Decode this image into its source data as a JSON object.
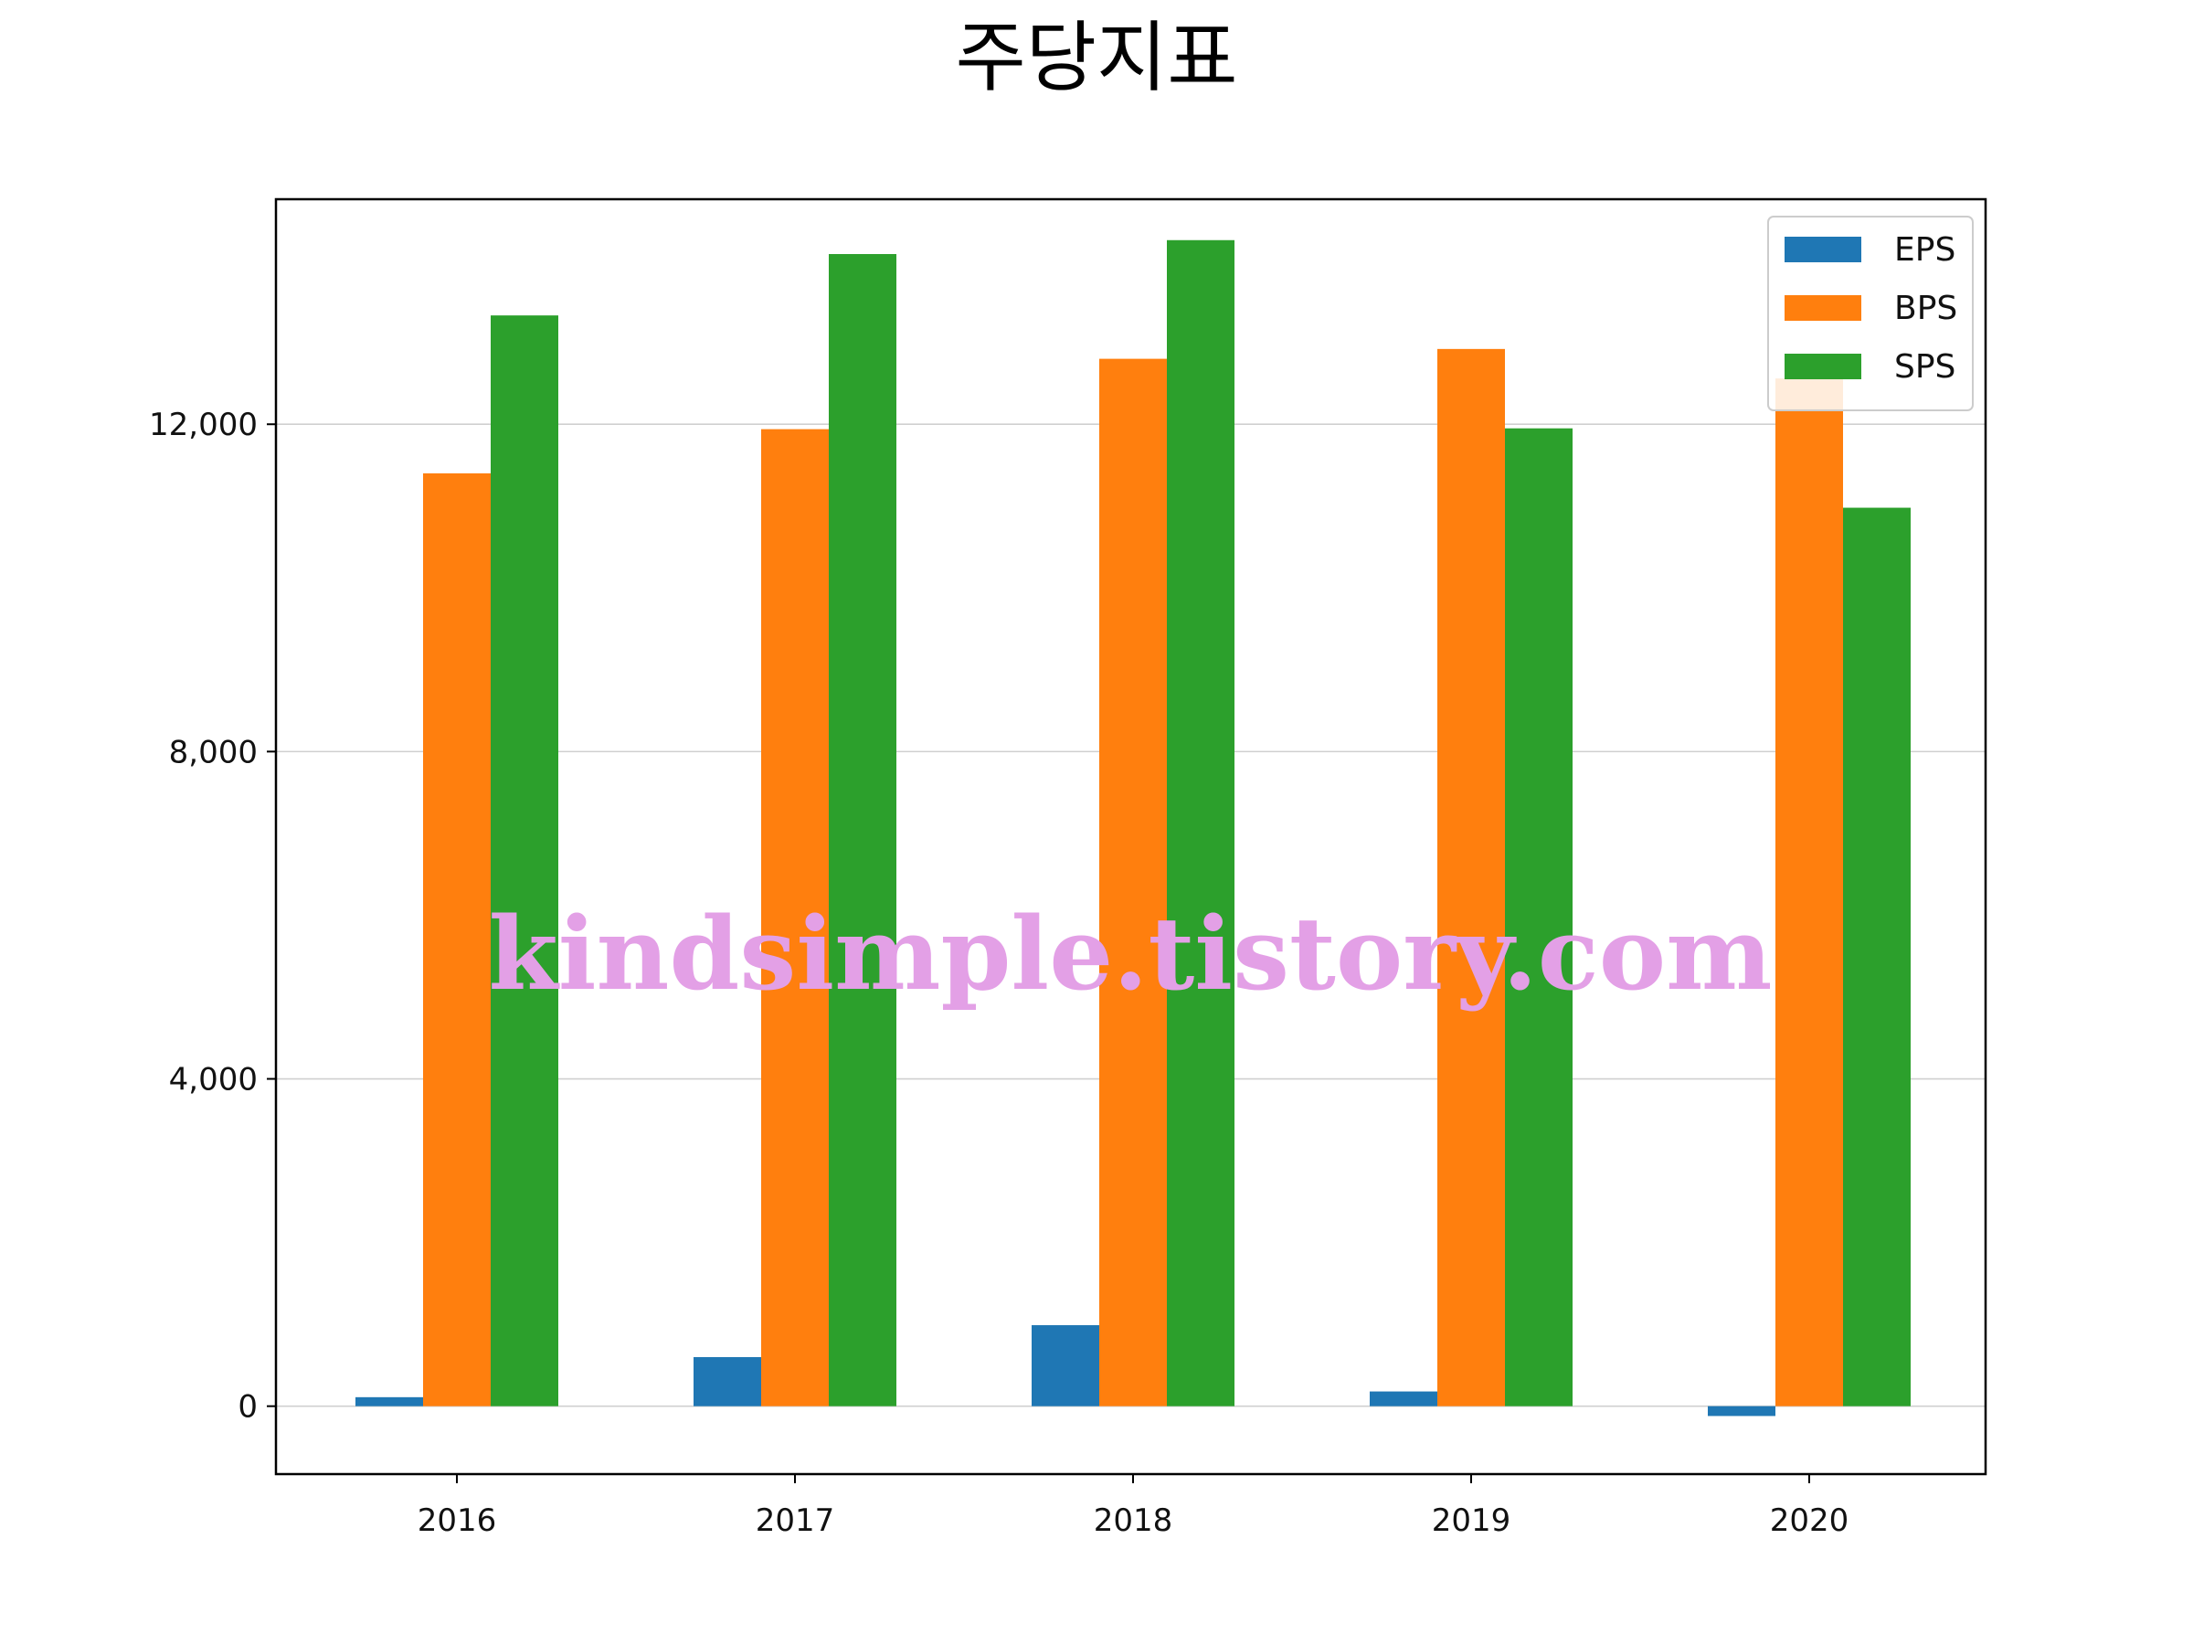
{
  "chart_data": {
    "type": "bar",
    "title": "주당지표",
    "xlabel": "",
    "ylabel": "",
    "categories": [
      "2016",
      "2017",
      "2018",
      "2019",
      "2020"
    ],
    "series": [
      {
        "name": "EPS",
        "color": "#1f77b4",
        "values": [
          110,
          600,
          990,
          180,
          -120
        ]
      },
      {
        "name": "BPS",
        "color": "#ff7f0e",
        "values": [
          11400,
          11940,
          12800,
          12920,
          12560
        ]
      },
      {
        "name": "SPS",
        "color": "#2ca02c",
        "values": [
          13330,
          14080,
          14250,
          11950,
          10980
        ]
      }
    ],
    "ylim": [
      -830,
      14750
    ],
    "yticks": [
      0,
      4000,
      8000,
      12000
    ],
    "ytick_labels": [
      "0",
      "4,000",
      "8,000",
      "12,000"
    ],
    "grid": "y",
    "legend": "top-right",
    "watermark": "kindsimple.tistory.com"
  }
}
